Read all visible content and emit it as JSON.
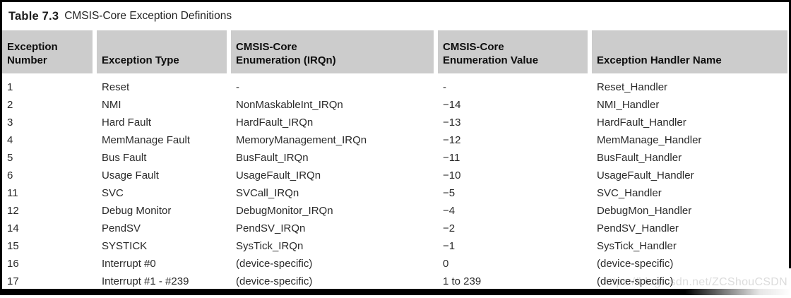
{
  "title": {
    "label": "Table 7.3",
    "caption": "CMSIS-Core Exception Definitions"
  },
  "table": {
    "columns": [
      {
        "text": "Exception\nNumber"
      },
      {
        "text": "Exception Type"
      },
      {
        "text": "CMSIS-Core\nEnumeration (IRQn)"
      },
      {
        "text": "CMSIS-Core\nEnumeration Value"
      },
      {
        "text": "Exception Handler Name"
      }
    ],
    "rows": [
      {
        "number": "1",
        "type": "Reset",
        "enum": "-",
        "value": "-",
        "handler": "Reset_Handler"
      },
      {
        "number": "2",
        "type": "NMI",
        "enum": "NonMaskableInt_IRQn",
        "value": "−14",
        "handler": "NMI_Handler"
      },
      {
        "number": "3",
        "type": "Hard Fault",
        "enum": "HardFault_IRQn",
        "value": "−13",
        "handler": "HardFault_Handler"
      },
      {
        "number": "4",
        "type": "MemManage Fault",
        "enum": "MemoryManagement_IRQn",
        "value": "−12",
        "handler": "MemManage_Handler"
      },
      {
        "number": "5",
        "type": "Bus Fault",
        "enum": "BusFault_IRQn",
        "value": "−11",
        "handler": "BusFault_Handler"
      },
      {
        "number": "6",
        "type": "Usage Fault",
        "enum": "UsageFault_IRQn",
        "value": "−10",
        "handler": "UsageFault_Handler"
      },
      {
        "number": "11",
        "type": "SVC",
        "enum": "SVCall_IRQn",
        "value": "−5",
        "handler": "SVC_Handler"
      },
      {
        "number": "12",
        "type": "Debug Monitor",
        "enum": "DebugMonitor_IRQn",
        "value": "−4",
        "handler": "DebugMon_Handler"
      },
      {
        "number": "14",
        "type": "PendSV",
        "enum": "PendSV_IRQn",
        "value": "−2",
        "handler": "PendSV_Handler"
      },
      {
        "number": "15",
        "type": "SYSTICK",
        "enum": "SysTick_IRQn",
        "value": "−1",
        "handler": "SysTick_Handler"
      },
      {
        "number": "16",
        "type": "Interrupt #0",
        "enum": "(device-specific)",
        "value": "0",
        "handler": "(device-specific)"
      },
      {
        "number": "17",
        "type": "Interrupt #1 - #239",
        "enum": "(device-specific)",
        "value": "1 to 239",
        "handler": "(device-specific)"
      }
    ]
  },
  "watermark": {
    "text": "https://blog.csdn.net/ZCShouCSDN"
  },
  "colors": {
    "header_bg": "#cccccc",
    "border": "#000000",
    "text": "#1c1c1c",
    "data_text": "#2a2a2a",
    "watermark": "#dcdcdc"
  }
}
